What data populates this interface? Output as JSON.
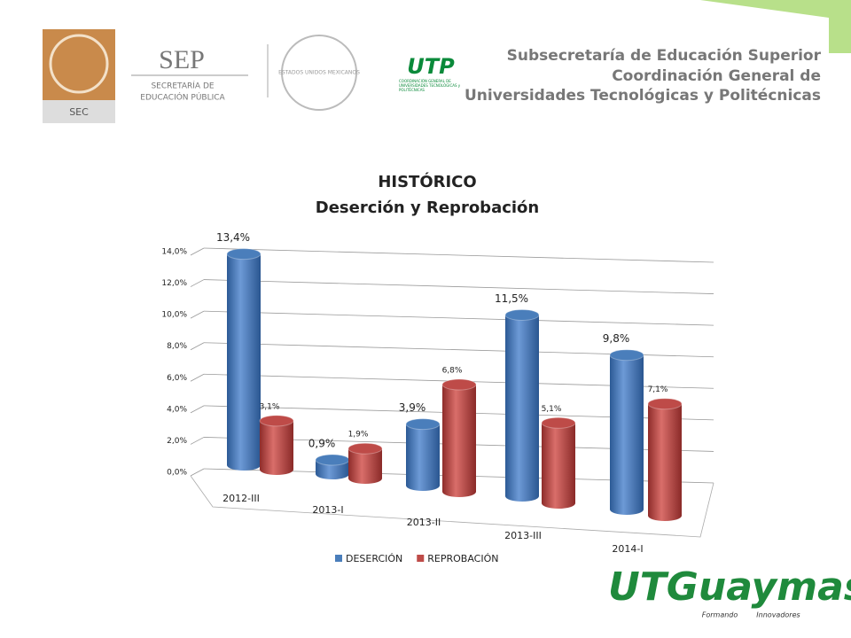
{
  "header": {
    "sec_logo": "SEC",
    "sep_logo": "SEP",
    "sep_line1": "SECRETARÍA DE",
    "sep_line2": "EDUCACIÓN PÚBLICA",
    "seal_text": "ESTADOS UNIDOS MEXICANOS",
    "utp_logo": "UTP",
    "utp_caption": "COORDINACIÓN GENERAL DE UNIVERSIDADES TECNOLÓGICAS y POLITÉCNICAS",
    "line1": "Subsecretaría de Educación Superior",
    "line2": "Coordinación General de",
    "line3": "Universidades Tecnológicas y Politécnicas"
  },
  "footer": {
    "logo": "UTGuaymas",
    "tagline_left": "Formando",
    "tagline_right": "Innovadores"
  },
  "chart_data": {
    "type": "bar3d",
    "title": "HISTÓRICO",
    "subtitle": "Deserción y Reprobación",
    "categories": [
      "2012-III",
      "2013-I",
      "2013-II",
      "2013-III",
      "2014-I"
    ],
    "series": [
      {
        "name": "DESERCIÓN",
        "color": "#4a7ebb",
        "values": [
          13.4,
          0.9,
          3.9,
          11.5,
          9.8
        ],
        "value_labels": [
          "13,4%",
          "0,9%",
          "3,9%",
          "11,5%",
          "9,8%"
        ]
      },
      {
        "name": "REPROBACIÓN",
        "color": "#be4b48",
        "values": [
          3.1,
          1.9,
          6.8,
          5.1,
          7.1
        ],
        "value_labels": [
          "3,1%",
          "1,9%",
          "6,8%",
          "5,1%",
          "7,1%"
        ]
      }
    ],
    "ylim": [
      0,
      14
    ],
    "yticks": [
      {
        "value": 0,
        "label": "0,0%"
      },
      {
        "value": 2,
        "label": "2,0%"
      },
      {
        "value": 4,
        "label": "4,0%"
      },
      {
        "value": 6,
        "label": "6,0%"
      },
      {
        "value": 8,
        "label": "8,0%"
      },
      {
        "value": 10,
        "label": "10,0%"
      },
      {
        "value": 12,
        "label": "12,0%"
      },
      {
        "value": 14,
        "label": "14,0%"
      }
    ],
    "grid": true,
    "legend": "bottom"
  }
}
